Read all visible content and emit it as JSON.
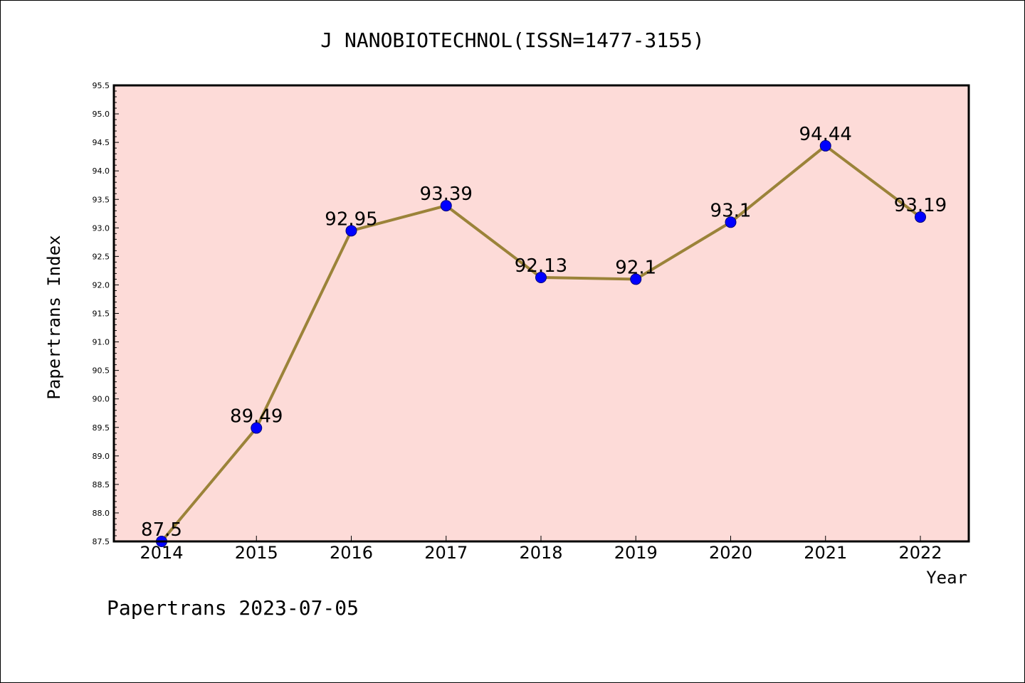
{
  "chart_data": {
    "type": "line",
    "title": "J NANOBIOTECHNOL(ISSN=1477-3155)",
    "xlabel": "Year",
    "ylabel": "Papertrans Index",
    "categories": [
      "2014",
      "2015",
      "2016",
      "2017",
      "2018",
      "2019",
      "2020",
      "2021",
      "2022"
    ],
    "values": [
      87.5,
      89.49,
      92.95,
      93.39,
      92.13,
      92.1,
      93.1,
      94.44,
      93.19
    ],
    "data_labels": [
      "87.5",
      "89.49",
      "92.95",
      "93.39",
      "92.13",
      "92.1",
      "93.1",
      "94.44",
      "93.19"
    ],
    "ylim": [
      87.5,
      95.5
    ],
    "yticks": [
      "87.5",
      "88.0",
      "88.5",
      "89.0",
      "89.5",
      "90.0",
      "90.5",
      "91.0",
      "91.5",
      "92.0",
      "92.5",
      "93.0",
      "93.5",
      "94.0",
      "94.5",
      "95.0",
      "95.5"
    ],
    "grid": false,
    "legend": "none",
    "colors": {
      "plot_background": "#fddbd8",
      "line": "#9b8339",
      "marker": "#0000ff"
    }
  },
  "footer": "Papertrans 2023-07-05"
}
